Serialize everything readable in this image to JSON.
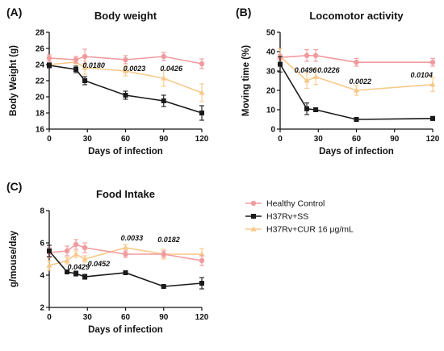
{
  "legend": [
    {
      "name": "Healthy Control",
      "color": "#f19a9e",
      "marker": "circle"
    },
    {
      "name": "H37Rv+SS",
      "color": "#1a1a1a",
      "marker": "square"
    },
    {
      "name": "H37Rv+CUR 16 μg/mL",
      "color": "#f6c98a",
      "marker": "triangle"
    }
  ],
  "chart_data": [
    {
      "type": "line",
      "panel_label": "(A)",
      "title": "Body weight",
      "xlabel": "Days of infection",
      "ylabel": "Body Weight (g)",
      "xlim": [
        0,
        120
      ],
      "ylim": [
        16,
        28
      ],
      "xticks": [
        0,
        30,
        60,
        90,
        120
      ],
      "yticks": [
        16,
        18,
        20,
        22,
        24,
        26,
        28
      ],
      "series": [
        {
          "name": "Healthy Control",
          "color": "#f19a9e",
          "marker": "circle",
          "x": [
            0,
            21,
            28,
            60,
            90,
            120
          ],
          "y": [
            24.8,
            24.6,
            25.0,
            24.6,
            25.0,
            24.1
          ],
          "err": [
            0.4,
            0.4,
            0.9,
            0.5,
            0.5,
            0.6
          ]
        },
        {
          "name": "H37Rv+SS",
          "color": "#1a1a1a",
          "marker": "square",
          "x": [
            0,
            21,
            28,
            60,
            90,
            120
          ],
          "y": [
            23.9,
            23.4,
            22.0,
            20.2,
            19.5,
            18.0
          ],
          "err": [
            0.3,
            0.4,
            0.5,
            0.5,
            0.7,
            0.9
          ]
        },
        {
          "name": "H37Rv+CUR 16 μg/mL",
          "color": "#f6c98a",
          "marker": "triangle",
          "x": [
            0,
            21,
            28,
            60,
            90,
            120
          ],
          "y": [
            24.0,
            24.3,
            23.6,
            23.2,
            22.3,
            20.5
          ],
          "err": [
            0.4,
            0.5,
            0.8,
            0.6,
            1.0,
            1.1
          ]
        }
      ],
      "annotations": [
        {
          "text": "0.0180",
          "x": 35,
          "y": 23.9
        },
        {
          "text": "0.0023",
          "x": 67,
          "y": 23.5
        },
        {
          "text": "0.0426",
          "x": 96,
          "y": 23.5
        }
      ]
    },
    {
      "type": "line",
      "panel_label": "(B)",
      "title": "Locomotor activity",
      "xlabel": "Days of infection",
      "ylabel": "Moving time (%)",
      "xlim": [
        0,
        120
      ],
      "ylim": [
        0,
        50
      ],
      "xticks": [
        0,
        30,
        60,
        90,
        120
      ],
      "yticks": [
        0,
        10,
        20,
        30,
        40,
        50
      ],
      "series": [
        {
          "name": "Healthy Control",
          "color": "#f19a9e",
          "marker": "circle",
          "x": [
            0,
            21,
            28,
            60,
            120
          ],
          "y": [
            37.0,
            38.0,
            38.0,
            34.5,
            34.5
          ],
          "err": [
            1.5,
            3.0,
            3.0,
            2.0,
            2.0
          ]
        },
        {
          "name": "H37Rv+SS",
          "color": "#1a1a1a",
          "marker": "square",
          "x": [
            0,
            21,
            28,
            60,
            120
          ],
          "y": [
            33.5,
            10.5,
            10.0,
            5.0,
            5.5
          ],
          "err": [
            4.0,
            3.0,
            1.0,
            0.5,
            1.0
          ]
        },
        {
          "name": "H37Rv+CUR 16 μg/mL",
          "color": "#f6c98a",
          "marker": "triangle",
          "x": [
            0,
            21,
            28,
            60,
            120
          ],
          "y": [
            37.5,
            25.0,
            27.0,
            20.0,
            23.0
          ],
          "err": [
            4.0,
            4.0,
            4.0,
            2.5,
            3.5
          ]
        }
      ],
      "annotations": [
        {
          "text": "0.0496",
          "x": 20,
          "y": 30.5
        },
        {
          "text": "0.0226",
          "x": 38,
          "y": 30.5
        },
        {
          "text": "0.0022",
          "x": 63,
          "y": 24.5
        },
        {
          "text": "0.0104",
          "x": 120,
          "y": 28.0
        }
      ]
    },
    {
      "type": "line",
      "panel_label": "(C)",
      "title": "Food Intake",
      "xlabel": "Days of infection",
      "ylabel": "g/mouse/day",
      "xlim": [
        0,
        120
      ],
      "ylim": [
        2,
        8
      ],
      "xticks": [
        0,
        30,
        60,
        90,
        120
      ],
      "yticks": [
        2,
        4,
        6,
        8
      ],
      "series": [
        {
          "name": "Healthy Control",
          "color": "#f19a9e",
          "marker": "circle",
          "x": [
            0,
            14,
            21,
            28,
            60,
            90,
            120
          ],
          "y": [
            5.4,
            5.5,
            5.9,
            5.7,
            5.3,
            5.3,
            4.9
          ],
          "err": [
            0.3,
            0.3,
            0.3,
            0.3,
            0.2,
            0.2,
            0.3
          ]
        },
        {
          "name": "H37Rv+SS",
          "color": "#1a1a1a",
          "marker": "square",
          "x": [
            0,
            14,
            21,
            28,
            60,
            90,
            120
          ],
          "y": [
            5.5,
            4.2,
            4.1,
            3.9,
            4.15,
            3.3,
            3.5
          ],
          "err": [
            0.35,
            0.1,
            0.15,
            0.15,
            0.1,
            0.05,
            0.35
          ]
        },
        {
          "name": "H37Rv+CUR 16 μg/mL",
          "color": "#f6c98a",
          "marker": "triangle",
          "x": [
            0,
            14,
            21,
            28,
            60,
            90,
            120
          ],
          "y": [
            4.6,
            4.9,
            5.3,
            5.0,
            5.7,
            5.3,
            5.3
          ],
          "err": [
            0.3,
            0.2,
            0.2,
            0.2,
            0.2,
            0.3,
            0.35
          ]
        }
      ],
      "annotations": [
        {
          "text": "0.0429",
          "x": 23,
          "y": 4.5
        },
        {
          "text": "0.0452",
          "x": 39,
          "y": 4.7
        },
        {
          "text": "0.0033",
          "x": 65,
          "y": 6.3
        },
        {
          "text": "0.0182",
          "x": 94,
          "y": 6.2
        }
      ]
    }
  ]
}
